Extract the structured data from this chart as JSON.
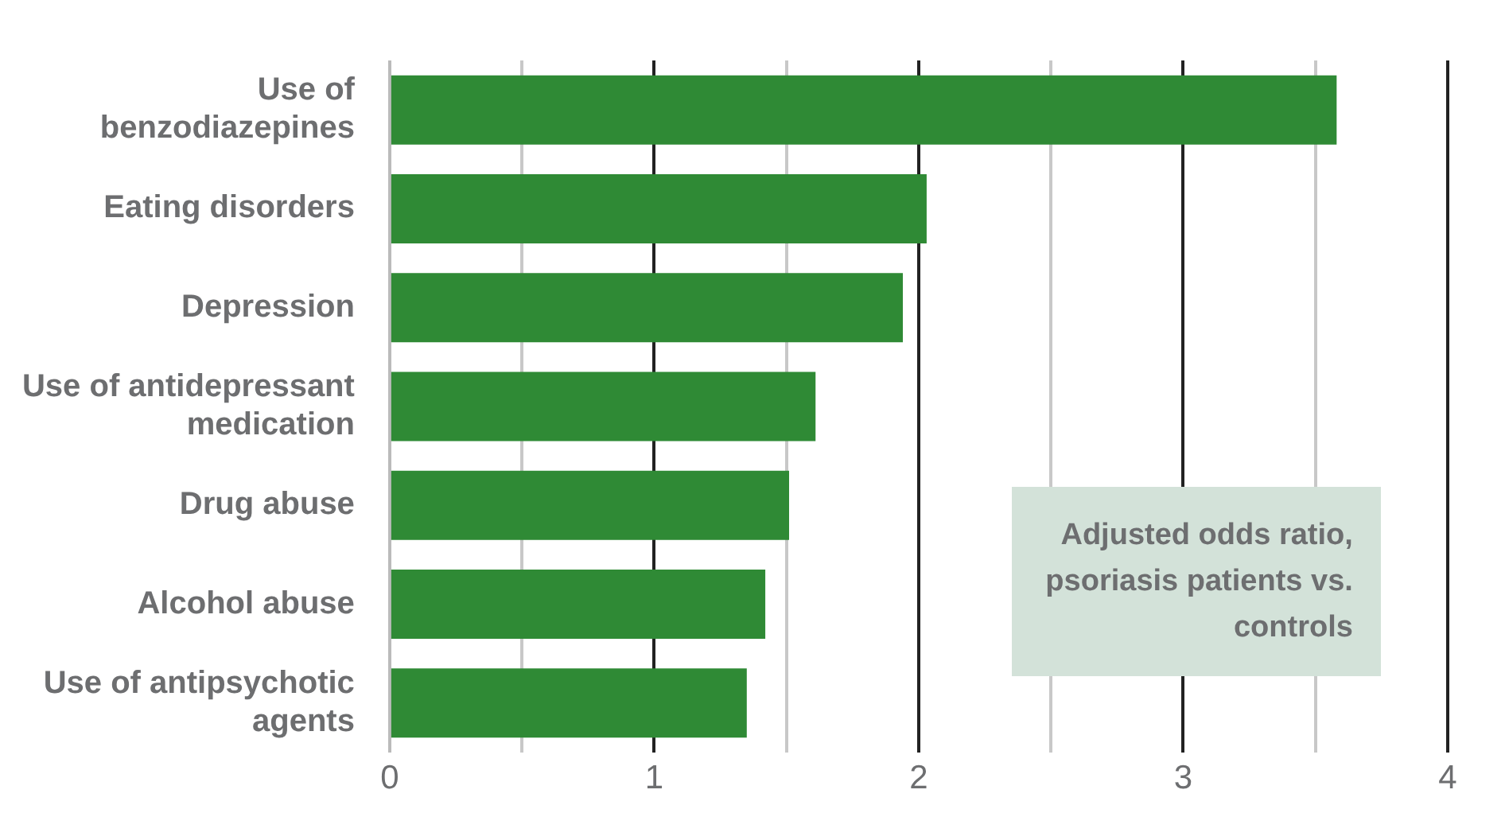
{
  "chart_data": {
    "type": "bar",
    "orientation": "horizontal",
    "categories": [
      "Use of benzodiazepines",
      "Eating disorders",
      "Depression",
      "Use of antidepressant medication",
      "Drug abuse",
      "Alcohol abuse",
      "Use of antipsychotic agents"
    ],
    "values": [
      3.58,
      2.03,
      1.94,
      1.61,
      1.51,
      1.42,
      1.35
    ],
    "color": "#2f8a35",
    "xlim": [
      0,
      4
    ],
    "xticks": [
      0,
      {
        "value": 0.5,
        "label": null
      },
      1,
      {
        "value": 1.5,
        "label": null
      },
      2,
      {
        "value": 2.5,
        "label": null
      },
      3,
      {
        "value": 3.5,
        "label": null
      },
      4
    ],
    "grid": "x",
    "legend": false,
    "annotations": [
      "Adjusted odds ratio, psoriasis patients vs. controls"
    ]
  }
}
